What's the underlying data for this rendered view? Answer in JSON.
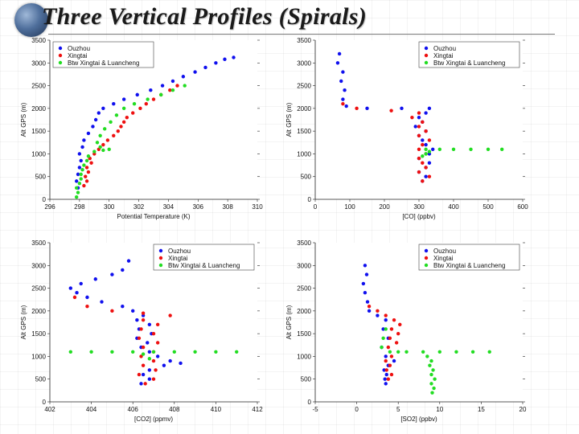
{
  "title": "Three Vertical Profiles (Spirals)",
  "colors": {
    "ouzhou": "#1010ee",
    "xingtai": "#ee1010",
    "btw": "#22dd22"
  },
  "chart_data": [
    {
      "type": "scatter",
      "xlabel": "Potential Temperature (K)",
      "ylabel": "Alt GPS (m)",
      "xlim": [
        296,
        310
      ],
      "ylim": [
        0,
        3500
      ],
      "xticks": [
        296,
        298,
        300,
        302,
        304,
        306,
        308,
        310
      ],
      "yticks": [
        0,
        500,
        1000,
        1500,
        2000,
        2500,
        3000,
        3500
      ],
      "legend": "top-left",
      "series": [
        {
          "name": "Ouzhou",
          "color": "#1010ee",
          "points": [
            [
              297.9,
              250
            ],
            [
              297.8,
              400
            ],
            [
              297.9,
              550
            ],
            [
              298.0,
              700
            ],
            [
              298.1,
              850
            ],
            [
              298.0,
              1000
            ],
            [
              298.2,
              1150
            ],
            [
              298.3,
              1300
            ],
            [
              298.6,
              1450
            ],
            [
              298.9,
              1600
            ],
            [
              299.1,
              1750
            ],
            [
              299.3,
              1900
            ],
            [
              299.6,
              2000
            ],
            [
              300.3,
              2100
            ],
            [
              301.0,
              2200
            ],
            [
              301.9,
              2300
            ],
            [
              302.8,
              2400
            ],
            [
              303.6,
              2500
            ],
            [
              304.3,
              2600
            ],
            [
              305.0,
              2700
            ],
            [
              305.8,
              2800
            ],
            [
              306.5,
              2900
            ],
            [
              307.2,
              3000
            ],
            [
              307.8,
              3080
            ],
            [
              308.4,
              3120
            ]
          ]
        },
        {
          "name": "Xingtai",
          "color": "#ee1010",
          "points": [
            [
              298.3,
              300
            ],
            [
              298.5,
              400
            ],
            [
              298.4,
              500
            ],
            [
              298.6,
              600
            ],
            [
              298.5,
              700
            ],
            [
              298.8,
              800
            ],
            [
              298.7,
              900
            ],
            [
              299.0,
              1000
            ],
            [
              299.3,
              1100
            ],
            [
              299.6,
              1200
            ],
            [
              299.9,
              1300
            ],
            [
              300.3,
              1400
            ],
            [
              300.6,
              1500
            ],
            [
              300.8,
              1600
            ],
            [
              301.0,
              1700
            ],
            [
              301.2,
              1800
            ],
            [
              301.6,
              1900
            ],
            [
              302.1,
              2000
            ],
            [
              302.5,
              2100
            ],
            [
              303.0,
              2200
            ],
            [
              303.5,
              2300
            ],
            [
              304.1,
              2400
            ],
            [
              304.6,
              2500
            ]
          ]
        },
        {
          "name": "Btw Xingtai & Luancheng",
          "color": "#22dd22",
          "points": [
            [
              297.8,
              50
            ],
            [
              297.9,
              150
            ],
            [
              297.8,
              250
            ],
            [
              298.0,
              350
            ],
            [
              298.1,
              450
            ],
            [
              298.1,
              550
            ],
            [
              298.2,
              650
            ],
            [
              298.3,
              750
            ],
            [
              298.5,
              850
            ],
            [
              298.6,
              950
            ],
            [
              299.0,
              1050
            ],
            [
              299.6,
              1080
            ],
            [
              300.0,
              1100
            ],
            [
              299.4,
              1150
            ],
            [
              299.2,
              1250
            ],
            [
              299.4,
              1400
            ],
            [
              299.7,
              1550
            ],
            [
              300.1,
              1700
            ],
            [
              300.5,
              1850
            ],
            [
              301.0,
              2000
            ],
            [
              301.7,
              2100
            ],
            [
              302.6,
              2200
            ],
            [
              303.5,
              2300
            ],
            [
              304.3,
              2400
            ],
            [
              305.1,
              2500
            ]
          ]
        }
      ]
    },
    {
      "type": "scatter",
      "xlabel": "[CO] (ppbv)",
      "ylabel": "Alt GPS (m)",
      "xlim": [
        0,
        600
      ],
      "ylim": [
        0,
        3500
      ],
      "xticks": [
        0,
        100,
        200,
        300,
        400,
        500,
        600
      ],
      "yticks": [
        0,
        500,
        1000,
        1500,
        2000,
        2500,
        3000,
        3500
      ],
      "legend": "top-right",
      "series": [
        {
          "name": "Ouzhou",
          "color": "#1010ee",
          "points": [
            [
              70,
              3200
            ],
            [
              65,
              3000
            ],
            [
              80,
              2800
            ],
            [
              75,
              2600
            ],
            [
              85,
              2400
            ],
            [
              80,
              2200
            ],
            [
              90,
              2050
            ],
            [
              150,
              2000
            ],
            [
              250,
              2000
            ],
            [
              330,
              2000
            ],
            [
              320,
              1900
            ],
            [
              300,
              1800
            ],
            [
              310,
              1700
            ],
            [
              290,
              1600
            ],
            [
              320,
              1500
            ],
            [
              300,
              1400
            ],
            [
              310,
              1300
            ],
            [
              320,
              1200
            ],
            [
              340,
              1100
            ],
            [
              330,
              1000
            ],
            [
              300,
              900
            ],
            [
              330,
              800
            ],
            [
              320,
              700
            ],
            [
              300,
              600
            ],
            [
              320,
              500
            ],
            [
              310,
              400
            ]
          ]
        },
        {
          "name": "Xingtai",
          "color": "#ee1010",
          "points": [
            [
              80,
              2100
            ],
            [
              120,
              2000
            ],
            [
              220,
              1950
            ],
            [
              300,
              1900
            ],
            [
              280,
              1800
            ],
            [
              310,
              1700
            ],
            [
              300,
              1600
            ],
            [
              320,
              1500
            ],
            [
              300,
              1400
            ],
            [
              330,
              1300
            ],
            [
              310,
              1200
            ],
            [
              300,
              1100
            ],
            [
              320,
              1000
            ],
            [
              300,
              900
            ],
            [
              310,
              800
            ],
            [
              320,
              700
            ],
            [
              300,
              600
            ],
            [
              330,
              500
            ],
            [
              310,
              400
            ]
          ]
        },
        {
          "name": "Btw Xingtai & Luancheng",
          "color": "#22dd22",
          "points": [
            [
              320,
              1100
            ],
            [
              360,
              1100
            ],
            [
              400,
              1100
            ],
            [
              450,
              1100
            ],
            [
              500,
              1100
            ],
            [
              540,
              1100
            ],
            [
              330,
              1050
            ],
            [
              320,
              1000
            ],
            [
              310,
              950
            ]
          ]
        }
      ]
    },
    {
      "type": "scatter",
      "xlabel": "[CO2] (ppmv)",
      "ylabel": "Alt GPS (m)",
      "xlim": [
        402,
        412
      ],
      "ylim": [
        0,
        3500
      ],
      "xticks": [
        402,
        404,
        406,
        408,
        410,
        412
      ],
      "yticks": [
        0,
        500,
        1000,
        1500,
        2000,
        2500,
        3000,
        3500
      ],
      "legend": "top-right",
      "series": [
        {
          "name": "Ouzhou",
          "color": "#1010ee",
          "points": [
            [
              405.8,
              3100
            ],
            [
              405.5,
              2900
            ],
            [
              405.0,
              2800
            ],
            [
              404.2,
              2700
            ],
            [
              403.5,
              2600
            ],
            [
              403.0,
              2500
            ],
            [
              403.3,
              2400
            ],
            [
              403.8,
              2300
            ],
            [
              404.5,
              2200
            ],
            [
              405.5,
              2100
            ],
            [
              406.0,
              2000
            ],
            [
              406.5,
              1900
            ],
            [
              406.2,
              1800
            ],
            [
              406.8,
              1700
            ],
            [
              406.3,
              1600
            ],
            [
              406.9,
              1500
            ],
            [
              406.2,
              1400
            ],
            [
              406.7,
              1300
            ],
            [
              406.4,
              1200
            ],
            [
              406.8,
              1100
            ],
            [
              407.2,
              1000
            ],
            [
              407.8,
              900
            ],
            [
              408.3,
              850
            ],
            [
              407.5,
              800
            ],
            [
              406.8,
              700
            ],
            [
              406.5,
              600
            ],
            [
              406.8,
              500
            ],
            [
              406.4,
              400
            ]
          ]
        },
        {
          "name": "Xingtai",
          "color": "#ee1010",
          "points": [
            [
              403.2,
              2300
            ],
            [
              403.8,
              2100
            ],
            [
              405.0,
              2000
            ],
            [
              406.5,
              1950
            ],
            [
              407.8,
              1900
            ],
            [
              406.5,
              1800
            ],
            [
              407.2,
              1700
            ],
            [
              406.4,
              1600
            ],
            [
              407.0,
              1500
            ],
            [
              406.3,
              1400
            ],
            [
              407.2,
              1300
            ],
            [
              406.5,
              1200
            ],
            [
              407.0,
              1100
            ],
            [
              406.4,
              1000
            ],
            [
              407.0,
              900
            ],
            [
              406.5,
              800
            ],
            [
              407.1,
              700
            ],
            [
              406.3,
              600
            ],
            [
              407.0,
              500
            ],
            [
              406.6,
              400
            ]
          ]
        },
        {
          "name": "Btw Xingtai & Luancheng",
          "color": "#22dd22",
          "points": [
            [
              403.0,
              1100
            ],
            [
              404.0,
              1100
            ],
            [
              405.0,
              1100
            ],
            [
              406.0,
              1100
            ],
            [
              407.0,
              1100
            ],
            [
              408.0,
              1100
            ],
            [
              409.0,
              1100
            ],
            [
              410.0,
              1100
            ],
            [
              411.0,
              1100
            ],
            [
              406.5,
              1050
            ],
            [
              406.8,
              950
            ]
          ]
        }
      ]
    },
    {
      "type": "scatter",
      "xlabel": "[SO2] (ppbv)",
      "ylabel": "Alt GPS (m)",
      "xlim": [
        -5,
        20
      ],
      "ylim": [
        0,
        3500
      ],
      "xticks": [
        -5,
        0,
        5,
        10,
        15,
        20
      ],
      "yticks": [
        0,
        500,
        1000,
        1500,
        2000,
        2500,
        3000,
        3500
      ],
      "legend": "top-right",
      "series": [
        {
          "name": "Ouzhou",
          "color": "#1010ee",
          "points": [
            [
              1.0,
              3000
            ],
            [
              1.2,
              2800
            ],
            [
              0.8,
              2600
            ],
            [
              1.0,
              2400
            ],
            [
              1.3,
              2200
            ],
            [
              1.5,
              2000
            ],
            [
              2.5,
              1900
            ],
            [
              3.5,
              1800
            ],
            [
              3.2,
              1600
            ],
            [
              3.8,
              1400
            ],
            [
              3.0,
              1200
            ],
            [
              3.5,
              1000
            ],
            [
              4.5,
              900
            ],
            [
              3.8,
              800
            ],
            [
              3.3,
              700
            ],
            [
              3.6,
              600
            ],
            [
              3.4,
              500
            ],
            [
              3.5,
              400
            ]
          ]
        },
        {
          "name": "Xingtai",
          "color": "#ee1010",
          "points": [
            [
              1.5,
              2100
            ],
            [
              2.5,
              2000
            ],
            [
              3.5,
              1900
            ],
            [
              4.5,
              1800
            ],
            [
              5.2,
              1700
            ],
            [
              4.2,
              1600
            ],
            [
              5.0,
              1500
            ],
            [
              4.0,
              1400
            ],
            [
              4.8,
              1300
            ],
            [
              3.8,
              1200
            ],
            [
              4.2,
              1000
            ],
            [
              3.5,
              900
            ],
            [
              4.0,
              800
            ],
            [
              3.6,
              700
            ],
            [
              4.2,
              600
            ],
            [
              3.8,
              500
            ]
          ]
        },
        {
          "name": "Btw Xingtai & Luancheng",
          "color": "#22dd22",
          "points": [
            [
              3.5,
              1600
            ],
            [
              3.2,
              1400
            ],
            [
              3.0,
              1200
            ],
            [
              4.0,
              1100
            ],
            [
              5.0,
              1100
            ],
            [
              6.0,
              1100
            ],
            [
              8.0,
              1100
            ],
            [
              10.0,
              1100
            ],
            [
              12.0,
              1100
            ],
            [
              14.0,
              1100
            ],
            [
              16.0,
              1100
            ],
            [
              8.5,
              1000
            ],
            [
              9.0,
              900
            ],
            [
              8.8,
              800
            ],
            [
              9.2,
              700
            ],
            [
              9.0,
              600
            ],
            [
              9.4,
              500
            ],
            [
              9.0,
              400
            ],
            [
              9.3,
              300
            ],
            [
              9.1,
              200
            ]
          ]
        }
      ]
    }
  ]
}
